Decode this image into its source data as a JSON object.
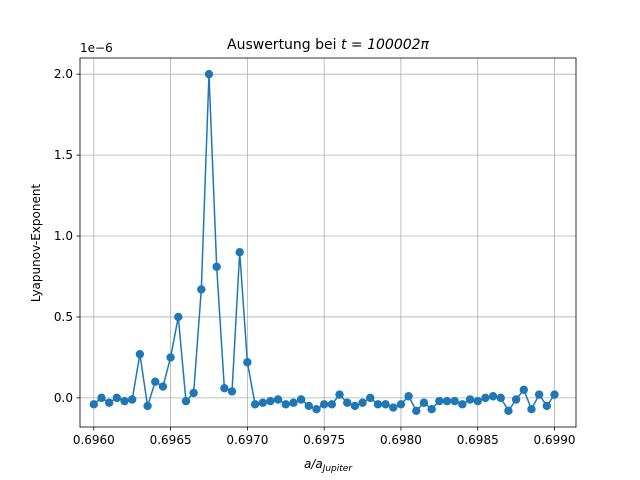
{
  "chart_data": {
    "type": "line",
    "title_prefix": "Auswertung bei ",
    "title_math": "t = 100002π",
    "xlabel_main": "a/a",
    "xlabel_sub": "Jupiter",
    "ylabel": "Lyapunov-Exponent",
    "y_offset_label": "1e−6",
    "y_scale": 1e-06,
    "xlim": [
      0.69591,
      0.69914
    ],
    "ylim": [
      -0.18,
      2.1
    ],
    "xticks": [
      0.696,
      0.6965,
      0.697,
      0.6975,
      0.698,
      0.6985,
      0.699
    ],
    "xtick_labels": [
      "0.6960",
      "0.6965",
      "0.6970",
      "0.6975",
      "0.6980",
      "0.6985",
      "0.6990"
    ],
    "yticks": [
      0.0,
      0.5,
      1.0,
      1.5,
      2.0
    ],
    "ytick_labels": [
      "0.0",
      "0.5",
      "1.0",
      "1.5",
      "2.0"
    ],
    "grid": true,
    "color": "#1f77b4",
    "series": [
      {
        "x_start": 0.696,
        "x_step": 5e-05,
        "values": [
          -0.04,
          0.0,
          -0.03,
          0.0,
          -0.02,
          -0.01,
          0.27,
          -0.05,
          0.1,
          0.07,
          0.25,
          0.5,
          -0.02,
          0.03,
          0.67,
          2.0,
          0.81,
          0.06,
          0.04,
          0.9,
          0.22,
          -0.04,
          -0.03,
          -0.02,
          -0.01,
          -0.04,
          -0.03,
          -0.01,
          -0.05,
          -0.07,
          -0.04,
          -0.04,
          0.02,
          -0.03,
          -0.05,
          -0.03,
          0.0,
          -0.04,
          -0.04,
          -0.06,
          -0.04,
          0.01,
          -0.08,
          -0.03,
          -0.07,
          -0.02,
          -0.02,
          -0.02,
          -0.04,
          -0.01,
          -0.02,
          0.0,
          0.01,
          0.0,
          -0.08,
          -0.01,
          0.05,
          -0.07,
          0.02,
          -0.05,
          0.02
        ]
      }
    ]
  }
}
